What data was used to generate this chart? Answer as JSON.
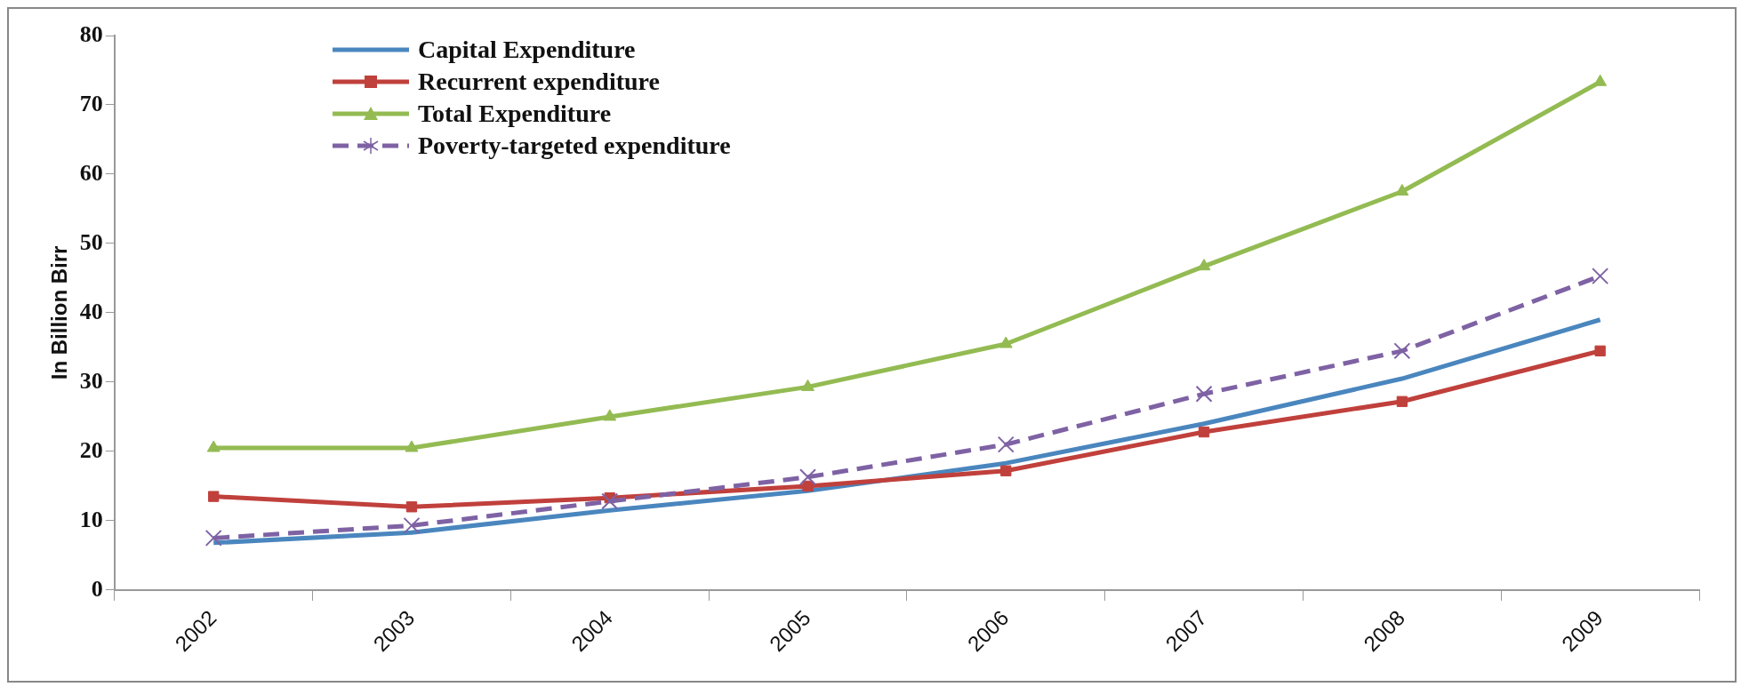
{
  "chart_data": {
    "type": "line",
    "ylabel": "In Billion Birr",
    "categories": [
      "2002",
      "2003",
      "2004",
      "2005",
      "2006",
      "2007",
      "2008",
      "2009"
    ],
    "series": [
      {
        "name": "Capital Expenditure",
        "color": "#4a86be",
        "marker": "none",
        "line_style": "solid",
        "values": [
          6.8,
          8.3,
          11.5,
          14.3,
          18.3,
          24,
          30.5,
          39
        ]
      },
      {
        "name": "Recurrent expenditure",
        "color": "#c0403c",
        "marker": "square",
        "line_style": "solid",
        "values": [
          13.5,
          12,
          13.3,
          15,
          17.2,
          22.8,
          27.2,
          34.5
        ]
      },
      {
        "name": "Total Expenditure",
        "color": "#93bb52",
        "marker": "triangle",
        "line_style": "solid",
        "values": [
          20.5,
          20.5,
          25,
          29.3,
          35.5,
          46.7,
          57.5,
          73.3
        ]
      },
      {
        "name": "Poverty-targeted expenditure",
        "color": "#7e62a4",
        "marker": "cross",
        "line_style": "dashed",
        "values": [
          7.5,
          9.3,
          12.8,
          16.3,
          21,
          28.3,
          34.5,
          45.3
        ]
      }
    ],
    "ylim": [
      0,
      80
    ],
    "yticks": [
      0,
      10,
      20,
      30,
      40,
      50,
      60,
      70,
      80
    ],
    "grid": false,
    "legend": "top left"
  }
}
